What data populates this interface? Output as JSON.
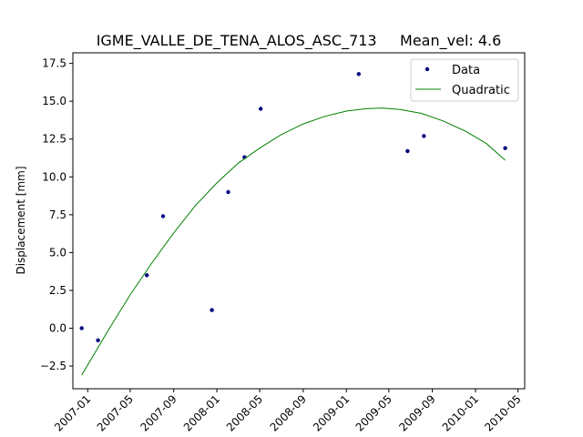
{
  "chart_data": {
    "type": "scatter",
    "title": "IGME_VALLE_DE_TENA_ALOS_ASC_713     Mean_vel: 4.6",
    "xlabel": "",
    "ylabel": "Displacement [mm]",
    "x_axis_type": "date",
    "xlim": [
      "2006-11-20",
      "2010-05-20"
    ],
    "ylim": [
      -4.0,
      18.2
    ],
    "xticks": [
      "2007-01-01",
      "2007-05-01",
      "2007-09-01",
      "2008-01-01",
      "2008-05-01",
      "2008-09-01",
      "2009-01-01",
      "2009-05-01",
      "2009-09-01",
      "2010-01-01",
      "2010-05-01"
    ],
    "xtick_labels": [
      "2007-01",
      "2007-05",
      "2007-09",
      "2008-01",
      "2008-05",
      "2008-09",
      "2009-01",
      "2009-05",
      "2009-09",
      "2010-01",
      "2010-05"
    ],
    "yticks": [
      -2.5,
      0.0,
      2.5,
      5.0,
      7.5,
      10.0,
      12.5,
      15.0,
      17.5
    ],
    "ytick_labels": [
      "−2.5",
      "0.0",
      "2.5",
      "5.0",
      "7.5",
      "10.0",
      "12.5",
      "15.0",
      "17.5"
    ],
    "grid": false,
    "legend_position": "top-right",
    "series": [
      {
        "name": "Data",
        "kind": "points",
        "color": "#00007f",
        "points": [
          {
            "x": "2006-12-15",
            "y": 0.0
          },
          {
            "x": "2007-01-30",
            "y": -0.8
          },
          {
            "x": "2007-06-17",
            "y": 3.5
          },
          {
            "x": "2007-08-02",
            "y": 7.4
          },
          {
            "x": "2007-12-18",
            "y": 1.2
          },
          {
            "x": "2008-02-02",
            "y": 9.0
          },
          {
            "x": "2008-03-19",
            "y": 11.3
          },
          {
            "x": "2008-05-04",
            "y": 14.5
          },
          {
            "x": "2009-02-05",
            "y": 16.8
          },
          {
            "x": "2009-06-23",
            "y": 11.7
          },
          {
            "x": "2009-08-08",
            "y": 12.7
          },
          {
            "x": "2010-03-26",
            "y": 11.9
          }
        ]
      },
      {
        "name": "Quadratic",
        "kind": "line",
        "color": "#008000",
        "points": [
          {
            "x": "2006-12-15",
            "y": -3.1
          },
          {
            "x": "2007-03-01",
            "y": -0.1
          },
          {
            "x": "2007-05-01",
            "y": 2.2
          },
          {
            "x": "2007-07-01",
            "y": 4.3
          },
          {
            "x": "2007-09-01",
            "y": 6.3
          },
          {
            "x": "2007-11-01",
            "y": 8.1
          },
          {
            "x": "2008-01-01",
            "y": 9.6
          },
          {
            "x": "2008-03-01",
            "y": 10.9
          },
          {
            "x": "2008-05-01",
            "y": 11.9
          },
          {
            "x": "2008-07-01",
            "y": 12.8
          },
          {
            "x": "2008-09-01",
            "y": 13.5
          },
          {
            "x": "2008-11-01",
            "y": 14.0
          },
          {
            "x": "2009-01-01",
            "y": 14.35
          },
          {
            "x": "2009-03-01",
            "y": 14.52
          },
          {
            "x": "2009-04-15",
            "y": 14.55
          },
          {
            "x": "2009-06-01",
            "y": 14.45
          },
          {
            "x": "2009-08-01",
            "y": 14.2
          },
          {
            "x": "2009-10-01",
            "y": 13.7
          },
          {
            "x": "2009-12-01",
            "y": 13.05
          },
          {
            "x": "2010-02-01",
            "y": 12.2
          },
          {
            "x": "2010-03-26",
            "y": 11.1
          }
        ]
      }
    ]
  }
}
